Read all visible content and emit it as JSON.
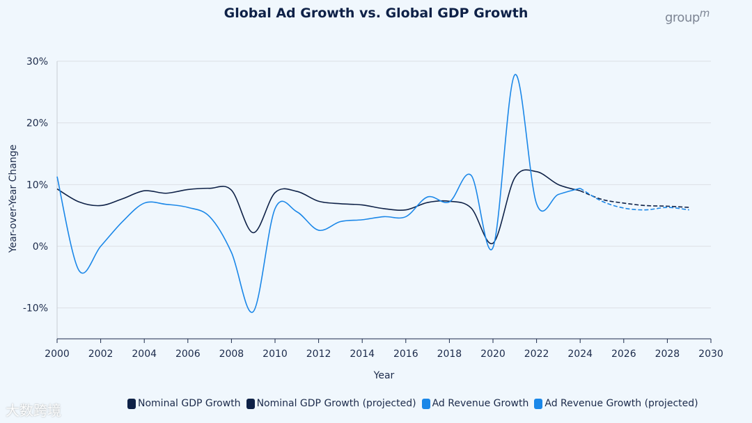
{
  "watermark": "大数跨境",
  "logo": {
    "text": "group",
    "sup": "m"
  },
  "chart_data": {
    "type": "line",
    "title": "Global Ad Growth vs. Global GDP Growth",
    "xlabel": "Year",
    "ylabel": "Year-over-Year Change",
    "xlim": [
      2000,
      2030
    ],
    "ylim": [
      -15,
      30
    ],
    "xticks": [
      "2000",
      "2002",
      "2004",
      "2006",
      "2008",
      "2010",
      "2012",
      "2014",
      "2016",
      "2018",
      "2020",
      "2022",
      "2024",
      "2026",
      "2028",
      "2030"
    ],
    "yticks": [
      {
        "v": -10,
        "label": "-10%"
      },
      {
        "v": 0,
        "label": "0%"
      },
      {
        "v": 10,
        "label": "10%"
      },
      {
        "v": 20,
        "label": "20%"
      },
      {
        "v": 30,
        "label": "30%"
      }
    ],
    "grid": true,
    "legend_position": "bottom",
    "series": [
      {
        "name": "Nominal GDP Growth",
        "color": "#0e2147",
        "dashed": false,
        "x": [
          2000,
          2001,
          2002,
          2003,
          2004,
          2005,
          2006,
          2007,
          2008,
          2009,
          2010,
          2011,
          2012,
          2013,
          2014,
          2015,
          2016,
          2017,
          2018,
          2019,
          2020,
          2021,
          2022,
          2023,
          2024
        ],
        "values": [
          9.3,
          7.2,
          6.6,
          7.7,
          9.0,
          8.6,
          9.2,
          9.4,
          9.1,
          2.2,
          8.7,
          8.9,
          7.3,
          6.9,
          6.7,
          6.1,
          5.9,
          7.1,
          7.3,
          6.2,
          0.5,
          11.1,
          12.1,
          10.0,
          9.0
        ]
      },
      {
        "name": "Nominal GDP Growth (projected)",
        "color": "#0e2147",
        "dashed": true,
        "x": [
          2024,
          2025,
          2026,
          2027,
          2028,
          2029
        ],
        "values": [
          9.0,
          7.6,
          7.0,
          6.6,
          6.5,
          6.3
        ]
      },
      {
        "name": "Ad Revenue Growth",
        "color": "#1a87e8",
        "dashed": false,
        "x": [
          2000,
          2001,
          2002,
          2003,
          2004,
          2005,
          2006,
          2007,
          2008,
          2009,
          2010,
          2011,
          2012,
          2013,
          2014,
          2015,
          2016,
          2017,
          2018,
          2019,
          2020,
          2021,
          2022,
          2023,
          2024
        ],
        "values": [
          11.3,
          -3.9,
          0.0,
          4.0,
          7.0,
          6.8,
          6.3,
          4.8,
          -1.0,
          -10.6,
          6.1,
          5.6,
          2.6,
          4.0,
          4.3,
          4.8,
          4.8,
          8.0,
          7.2,
          11.5,
          -0.2,
          27.8,
          6.9,
          8.4,
          9.4
        ]
      },
      {
        "name": "Ad Revenue Growth (projected)",
        "color": "#1a87e8",
        "dashed": true,
        "x": [
          2024,
          2025,
          2026,
          2027,
          2028,
          2029
        ],
        "values": [
          9.4,
          7.3,
          6.2,
          5.9,
          6.3,
          5.9
        ]
      }
    ]
  }
}
